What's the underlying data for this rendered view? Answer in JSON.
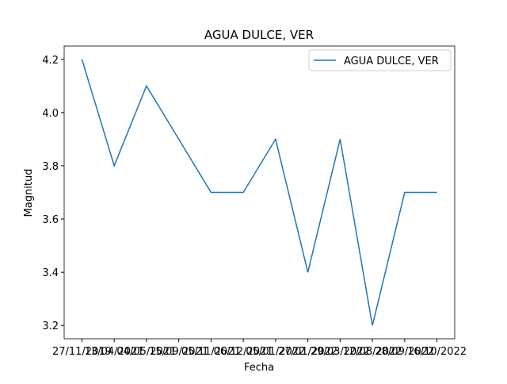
{
  "chart_data": {
    "type": "line",
    "title": "AGUA DULCE, VER",
    "x_label": "Fecha",
    "y_label": "Magnitud",
    "categories": [
      "27/11/2019",
      "13/04/2021",
      "04/05/2021",
      "15/09/2021",
      "05/11/2021",
      "06/12/2021",
      "05/01/2022",
      "27/01/2022",
      "29/03/2022",
      "12/08/2022",
      "28/09/2022",
      "16/10/2022"
    ],
    "series": [
      {
        "name": "AGUA DULCE, VER",
        "color": "#1f77b4",
        "values": [
          4.2,
          3.8,
          4.1,
          3.9,
          3.7,
          3.7,
          3.9,
          3.4,
          3.9,
          3.2,
          3.7,
          3.7
        ]
      }
    ],
    "ylim": [
      3.15,
      4.25
    ],
    "yticks": [
      {
        "value": 3.2,
        "label": "3.2"
      },
      {
        "value": 3.4,
        "label": "3.4"
      },
      {
        "value": 3.6,
        "label": "3.6"
      },
      {
        "value": 3.8,
        "label": "3.8"
      },
      {
        "value": 4.0,
        "label": "4.0"
      },
      {
        "value": 4.2,
        "label": "4.2"
      }
    ],
    "legend": "upper right",
    "grid": false
  }
}
